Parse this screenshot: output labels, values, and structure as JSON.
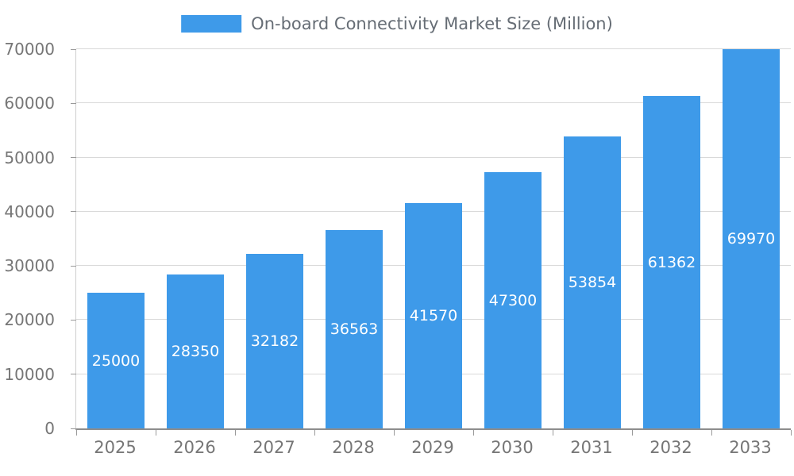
{
  "chart_data": {
    "type": "bar",
    "title": "On-board Connectivity Market Size (Million)",
    "categories": [
      "2025",
      "2026",
      "2027",
      "2028",
      "2029",
      "2030",
      "2031",
      "2032",
      "2033"
    ],
    "values": [
      25000,
      28350,
      32182,
      36563,
      41570,
      47300,
      53854,
      61362,
      69970
    ],
    "xlabel": "",
    "ylabel": "",
    "ylim": [
      0,
      70000
    ],
    "yticks": [
      0,
      10000,
      20000,
      30000,
      40000,
      50000,
      60000,
      70000
    ],
    "grid": true,
    "legend_position": "top-center",
    "value_labels": "inside-center",
    "colors": {
      "bar": "#3E9AE9",
      "gridline": "#d9d9d9",
      "axis": "#8d8d8d",
      "tick_label": "#767676",
      "value_label": "#ffffff",
      "legend_text": "#666d75"
    }
  }
}
